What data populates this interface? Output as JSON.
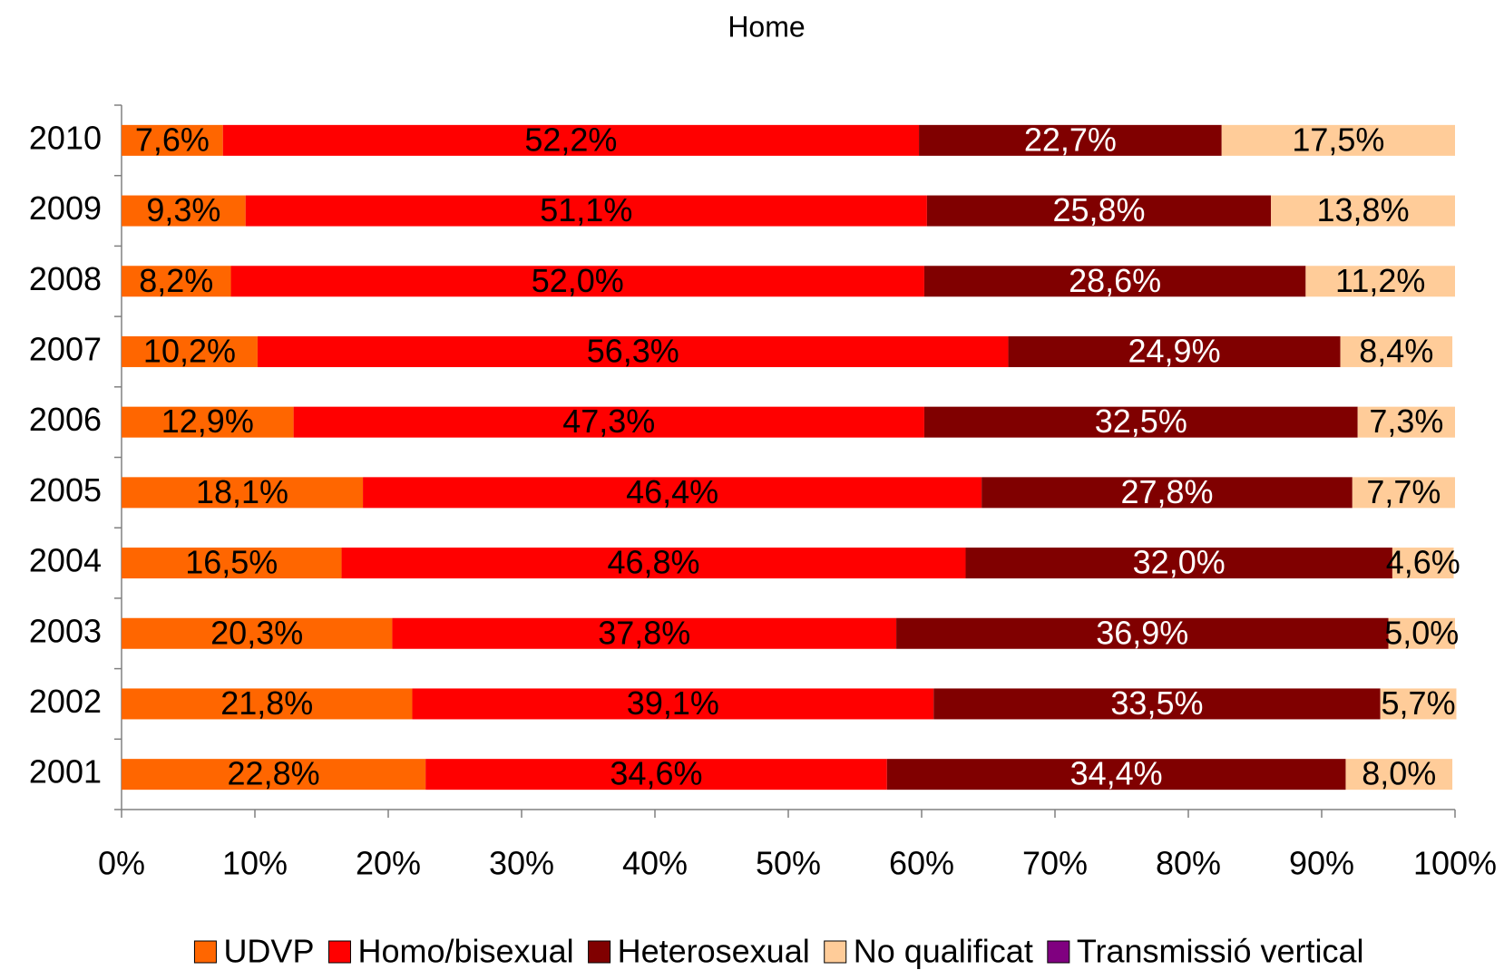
{
  "chart_data": {
    "type": "stacked_bar_horizontal_percent",
    "title": "Home",
    "categories": [
      "2010",
      "2009",
      "2008",
      "2007",
      "2006",
      "2005",
      "2004",
      "2003",
      "2002",
      "2001"
    ],
    "xlim": [
      0,
      100
    ],
    "xticks": [
      {
        "value": 0,
        "label": "0%"
      },
      {
        "value": 10,
        "label": "10%"
      },
      {
        "value": 20,
        "label": "20%"
      },
      {
        "value": 30,
        "label": "30%"
      },
      {
        "value": 40,
        "label": "40%"
      },
      {
        "value": 50,
        "label": "50%"
      },
      {
        "value": 60,
        "label": "60%"
      },
      {
        "value": 70,
        "label": "70%"
      },
      {
        "value": 80,
        "label": "80%"
      },
      {
        "value": 90,
        "label": "90%"
      },
      {
        "value": 100,
        "label": "100%"
      }
    ],
    "legend": "bottom",
    "series": [
      {
        "name": "UDVP",
        "color": "#ff6600",
        "label_color": "#000000",
        "values": [
          7.6,
          9.3,
          8.2,
          10.2,
          12.9,
          18.1,
          16.5,
          20.3,
          21.8,
          22.8
        ],
        "value_labels": [
          "7,6%",
          "9,3%",
          "8,2%",
          "10,2%",
          "12,9%",
          "18,1%",
          "16,5%",
          "20,3%",
          "21,8%",
          "22,8%"
        ]
      },
      {
        "name": "Homo/bisexual",
        "color": "#ff0000",
        "label_color": "#000000",
        "values": [
          52.2,
          51.1,
          52.0,
          56.3,
          47.3,
          46.4,
          46.8,
          37.8,
          39.1,
          34.6
        ],
        "value_labels": [
          "52,2%",
          "51,1%",
          "52,0%",
          "56,3%",
          "47,3%",
          "46,4%",
          "46,8%",
          "37,8%",
          "39,1%",
          "34,6%"
        ]
      },
      {
        "name": "Heterosexual",
        "color": "#800000",
        "label_color": "#ffffff",
        "values": [
          22.7,
          25.8,
          28.6,
          24.9,
          32.5,
          27.8,
          32.0,
          36.9,
          33.5,
          34.4
        ],
        "value_labels": [
          "22,7%",
          "25,8%",
          "28,6%",
          "24,9%",
          "32,5%",
          "27,8%",
          "32,0%",
          "36,9%",
          "33,5%",
          "34,4%"
        ]
      },
      {
        "name": "No qualificat",
        "color": "#ffcc99",
        "label_color": "#000000",
        "values": [
          17.5,
          13.8,
          11.2,
          8.4,
          7.3,
          7.7,
          4.6,
          5.0,
          5.7,
          8.0
        ],
        "value_labels": [
          "17,5%",
          "13,8%",
          "11,2%",
          "8,4%",
          "7,3%",
          "7,7%",
          "4,6%",
          "5,0%",
          "5,7%",
          "8,0%"
        ]
      },
      {
        "name": "Transmissió vertical",
        "color": "#800080",
        "values": [
          0,
          0,
          0,
          0,
          0,
          0,
          0,
          0,
          0,
          0
        ]
      }
    ]
  }
}
